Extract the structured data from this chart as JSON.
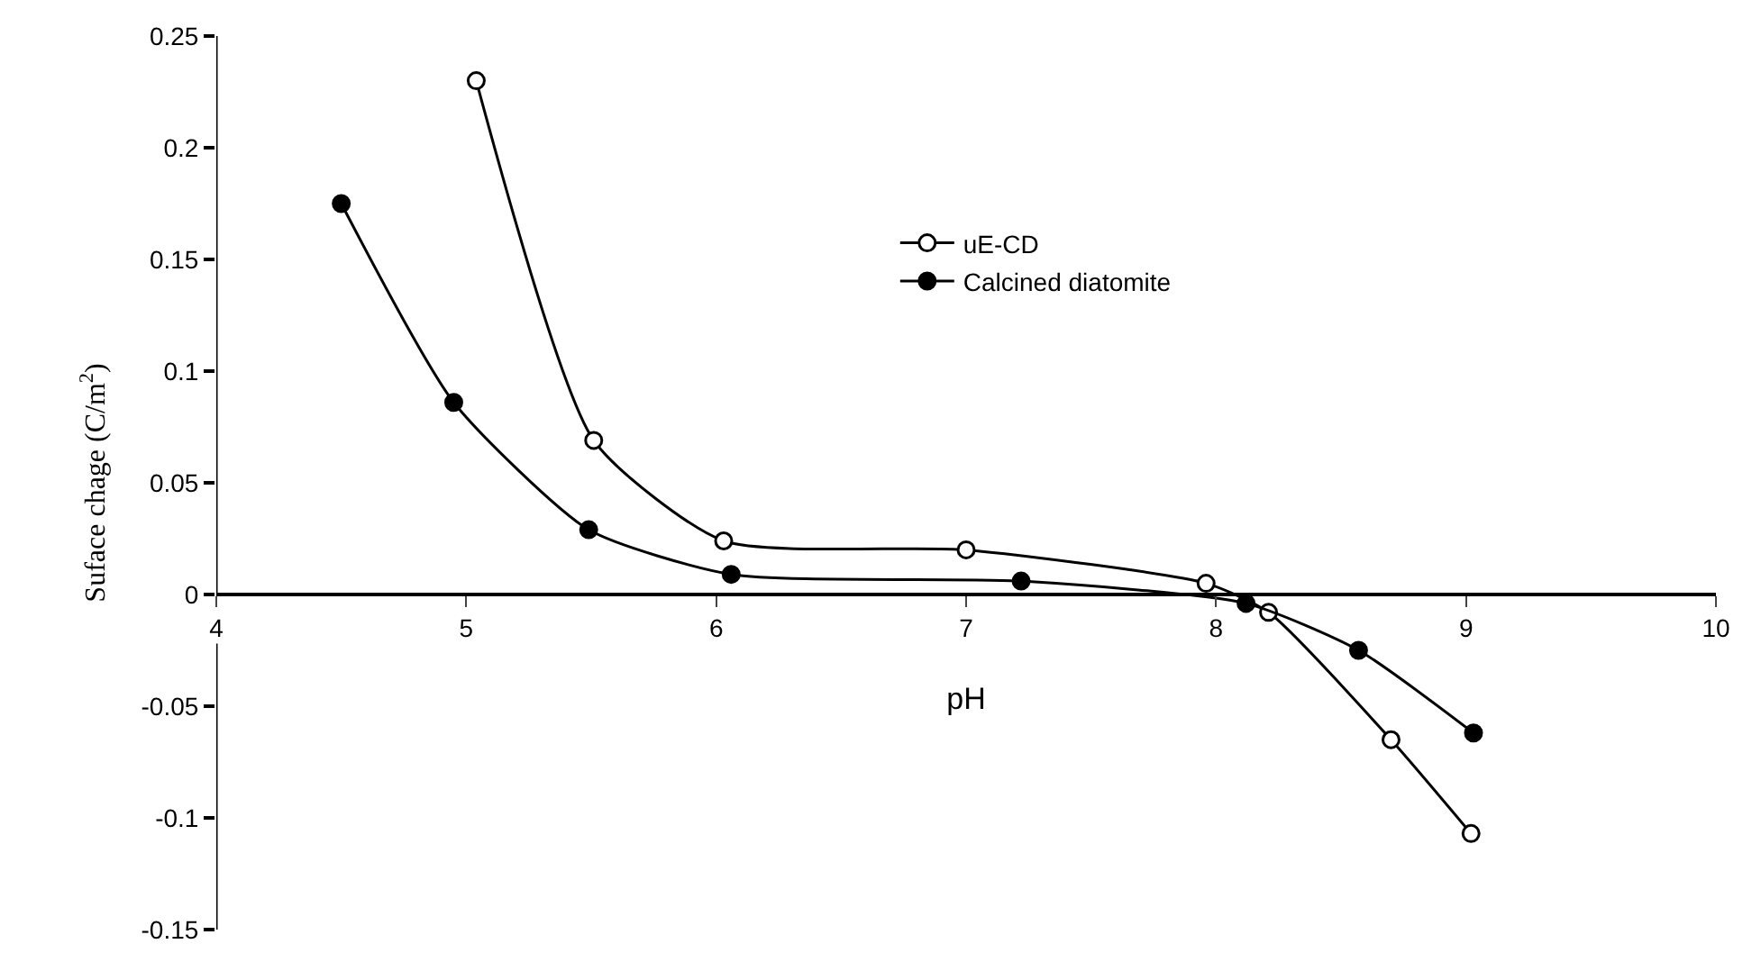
{
  "chart_data": {
    "type": "line",
    "xlabel": "pH",
    "ylabel": "Suface chage (C/m$^{2}$)",
    "xlim": [
      4,
      10
    ],
    "xticks": [
      4,
      5,
      6,
      7,
      8,
      9,
      10
    ],
    "ylim": [
      -0.15,
      0.25
    ],
    "yticks": [
      -0.15,
      -0.1,
      -0.05,
      0,
      0.05,
      0.1,
      0.15,
      0.2,
      0.25
    ],
    "legend": "top right",
    "marker": "circle",
    "line_style": "solid",
    "series": [
      {
        "name": "uE-CD",
        "color": "#000000",
        "x": [
          5.04,
          5.51,
          6.03,
          7.0,
          7.96,
          8.21,
          8.7,
          9.02
        ],
        "values": [
          0.23,
          0.069,
          0.024,
          0.02,
          0.005,
          -0.008,
          -0.065,
          -0.107
        ]
      },
      {
        "name": "Calcined diatomite",
        "color": "#000000",
        "x": [
          4.5,
          4.95,
          5.49,
          6.06,
          7.22,
          8.12,
          8.57,
          9.03
        ],
        "values": [
          0.175,
          0.086,
          0.029,
          0.009,
          0.006,
          -0.004,
          -0.025,
          -0.062
        ]
      }
    ]
  }
}
